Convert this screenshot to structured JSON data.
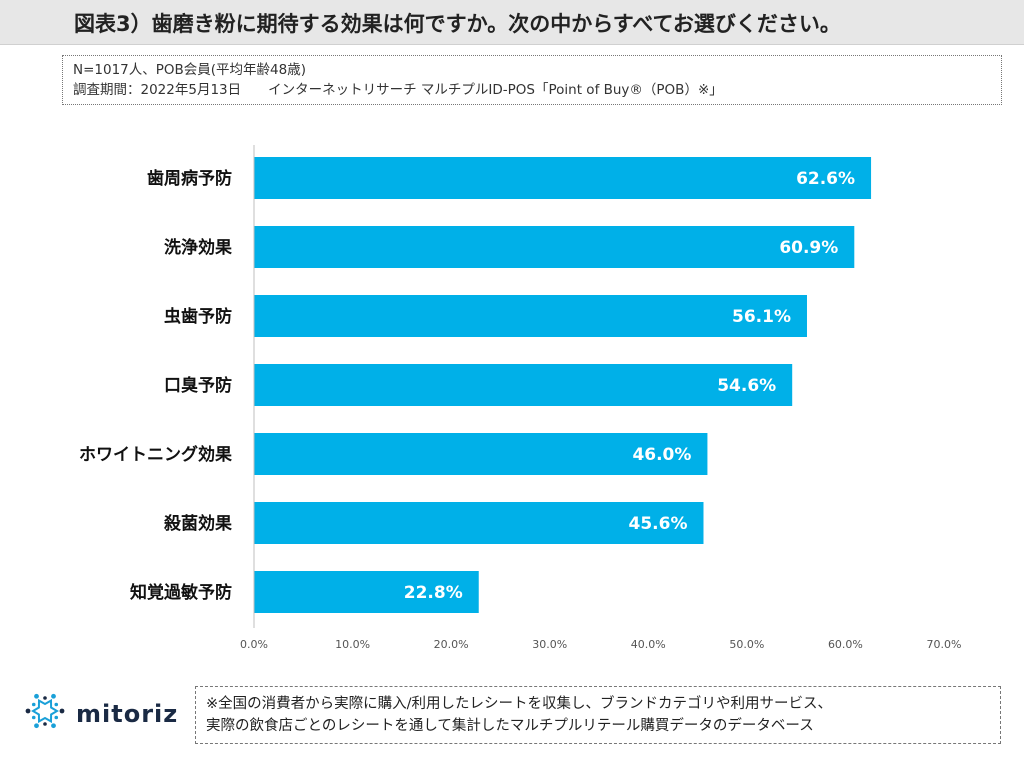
{
  "header": {
    "title": "図表3）歯磨き粉に期待する効果は何ですか。次の中からすべてお選びください。"
  },
  "info": {
    "line1": "N=1017人、POB会員(平均年齢48歳)",
    "line2": "調査期間：2022年5月13日　　インターネットリサーチ マルチプルID-POS「Point of Buy®（POB）※」"
  },
  "chart_data": {
    "type": "bar",
    "orientation": "horizontal",
    "categories": [
      "歯周病予防",
      "洗浄効果",
      "虫歯予防",
      "口臭予防",
      "ホワイトニング効果",
      "殺菌効果",
      "知覚過敏予防"
    ],
    "values": [
      62.6,
      60.9,
      56.1,
      54.6,
      46.0,
      45.6,
      22.8
    ],
    "value_labels": [
      "62.6%",
      "60.9%",
      "56.1%",
      "54.6%",
      "46.0%",
      "45.6%",
      "22.8%"
    ],
    "xlim": [
      0,
      70
    ],
    "ticks": [
      "0.0%",
      "10.0%",
      "20.0%",
      "30.0%",
      "40.0%",
      "50.0%",
      "60.0%",
      "70.0%"
    ],
    "bar_color": "#00b0e8",
    "grid": false
  },
  "logo": {
    "text": "mitoriz",
    "color": "#1aa0d8"
  },
  "footnote": {
    "line1": "※全国の消費者から実際に購入/利用したレシートを収集し、ブランドカテゴリや利用サービス、",
    "line2": "実際の飲食店ごとのレシートを通して集計したマルチプルリテール購買データのデータベース"
  }
}
